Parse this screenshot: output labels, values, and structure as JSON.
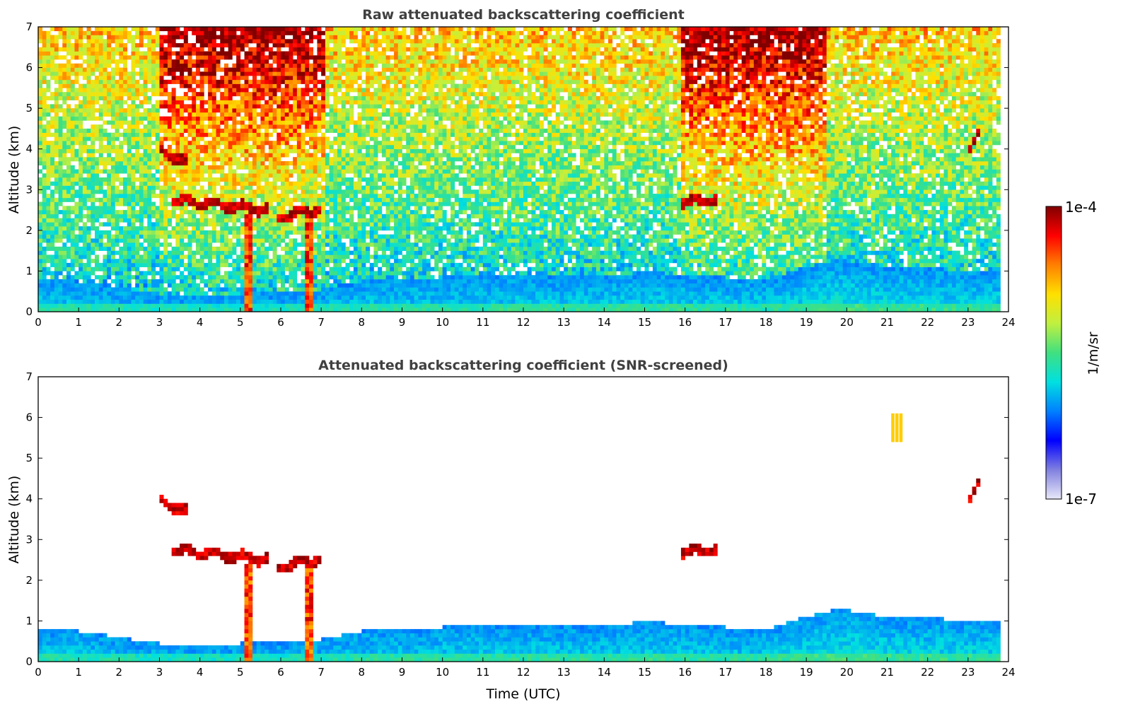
{
  "chart_data": [
    {
      "type": "heatmap",
      "title": "Raw attenuated backscattering coefficient",
      "xlabel": "",
      "ylabel": "Altitude (km)",
      "xlim": [
        0,
        24
      ],
      "ylim": [
        0,
        7
      ],
      "xticks": [
        "0",
        "1",
        "2",
        "3",
        "4",
        "5",
        "6",
        "7",
        "8",
        "9",
        "10",
        "11",
        "12",
        "13",
        "14",
        "15",
        "16",
        "17",
        "18",
        "19",
        "20",
        "21",
        "22",
        "23",
        "24"
      ],
      "yticks": [
        "0",
        "1",
        "2",
        "3",
        "4",
        "5",
        "6",
        "7"
      ],
      "features": [
        {
          "label": "cloud layer",
          "x_start": 3.0,
          "x_end": 3.7,
          "alt_start": 4.0,
          "alt_end": 3.65
        },
        {
          "label": "cloud layer",
          "x_start": 3.3,
          "x_end": 5.7,
          "alt_start": 2.75,
          "alt_end": 2.5
        },
        {
          "label": "cloud layer",
          "x_start": 5.9,
          "x_end": 7.05,
          "alt_start": 2.3,
          "alt_end": 2.55
        },
        {
          "label": "precipitation fall streak",
          "x": 5.2,
          "alt_top": 2.4
        },
        {
          "label": "precipitation fall streak",
          "x": 6.7,
          "alt_top": 2.3
        },
        {
          "label": "cloud layer",
          "x_start": 15.9,
          "x_end": 16.75,
          "alt_start": 2.7,
          "alt_end": 2.75
        },
        {
          "label": "high cloud",
          "x_start": 23.0,
          "x_end": 23.3,
          "alt_start": 3.9,
          "alt_end": 4.4
        }
      ]
    },
    {
      "type": "heatmap",
      "title": "Attenuated backscattering coefficient (SNR-screened)",
      "xlabel": "Time (UTC)",
      "ylabel": "Altitude (km)",
      "xlim": [
        0,
        24
      ],
      "ylim": [
        0,
        7
      ],
      "xticks": [
        "0",
        "1",
        "2",
        "3",
        "4",
        "5",
        "6",
        "7",
        "8",
        "9",
        "10",
        "11",
        "12",
        "13",
        "14",
        "15",
        "16",
        "17",
        "18",
        "19",
        "20",
        "21",
        "22",
        "23",
        "24"
      ],
      "yticks": [
        "0",
        "1",
        "2",
        "3",
        "4",
        "5",
        "6",
        "7"
      ],
      "boundary_layer_top_km": [
        [
          0,
          0.8
        ],
        [
          1,
          0.75
        ],
        [
          2,
          0.6
        ],
        [
          3,
          0.45
        ],
        [
          4,
          0.4
        ],
        [
          5,
          0.45
        ],
        [
          7,
          0.55
        ],
        [
          8,
          0.75
        ],
        [
          10,
          0.85
        ],
        [
          12,
          0.9
        ],
        [
          14,
          0.85
        ],
        [
          15,
          1.0
        ],
        [
          16,
          0.9
        ],
        [
          18,
          0.8
        ],
        [
          19,
          1.1
        ],
        [
          19.8,
          1.3
        ],
        [
          21,
          1.1
        ],
        [
          23.8,
          1.0
        ]
      ]
    }
  ],
  "colorbar": {
    "label": "1/m/sr",
    "max_label": "1e-4",
    "min_label": "1e-7",
    "colormap": [
      "#e8e8f8",
      "#8080e0",
      "#0000ff",
      "#0080ff",
      "#00e0e0",
      "#40e080",
      "#c0f040",
      "#ffe000",
      "#ff8000",
      "#ff0000",
      "#800000"
    ]
  }
}
